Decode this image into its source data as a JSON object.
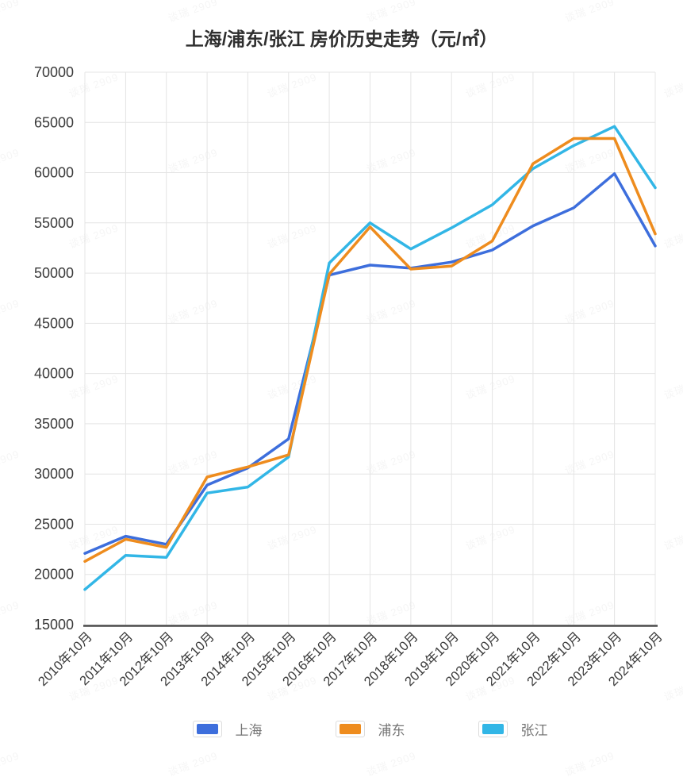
{
  "title": "上海/浦东/张江 房价历史走势（元/㎡）",
  "watermark": {
    "text": "谈瑞 2909"
  },
  "colors": {
    "grid": "#E4E4E4",
    "axis": "#4A4A4A",
    "tick_label": "#3A3A3A",
    "legend_label": "#757575",
    "title": "#2E2E2E"
  },
  "chart_data": {
    "type": "line",
    "title": "上海/浦东/张江 房价历史走势（元/㎡）",
    "xlabel": "",
    "ylabel": "元/㎡",
    "ylim": [
      15000,
      70000
    ],
    "ytick_step": 5000,
    "yticks": [
      15000,
      20000,
      25000,
      30000,
      35000,
      40000,
      45000,
      50000,
      55000,
      60000,
      65000,
      70000
    ],
    "grid": true,
    "legend_position": "bottom",
    "x_tick_rotation": 45,
    "categories": [
      "2010年10月",
      "2011年10月",
      "2012年10月",
      "2013年10月",
      "2014年10月",
      "2015年10月",
      "2016年10月",
      "2017年10月",
      "2018年10月",
      "2019年10月",
      "2020年10月",
      "2021年10月",
      "2022年10月",
      "2023年10月",
      "2024年10月"
    ],
    "series": [
      {
        "key": "shanghai",
        "name": "上海",
        "color": "#3D6EDC",
        "values": [
          22100,
          23800,
          23000,
          28900,
          30600,
          33500,
          49800,
          50800,
          50500,
          51100,
          52300,
          54700,
          56500,
          59900,
          52700
        ]
      },
      {
        "key": "pudong",
        "name": "浦东",
        "color": "#EE8C1E",
        "values": [
          21300,
          23500,
          22700,
          29700,
          30700,
          31900,
          49900,
          54600,
          50400,
          50700,
          53200,
          60900,
          63400,
          63400,
          53900
        ]
      },
      {
        "key": "zhangjiang",
        "name": "张江",
        "color": "#32B6E6",
        "values": [
          18500,
          21900,
          21700,
          28100,
          28700,
          31700,
          51000,
          55000,
          52400,
          54500,
          56800,
          60400,
          62700,
          64600,
          58500
        ]
      }
    ],
    "draw_order": [
      "shanghai",
      "zhangjiang",
      "pudong"
    ]
  }
}
